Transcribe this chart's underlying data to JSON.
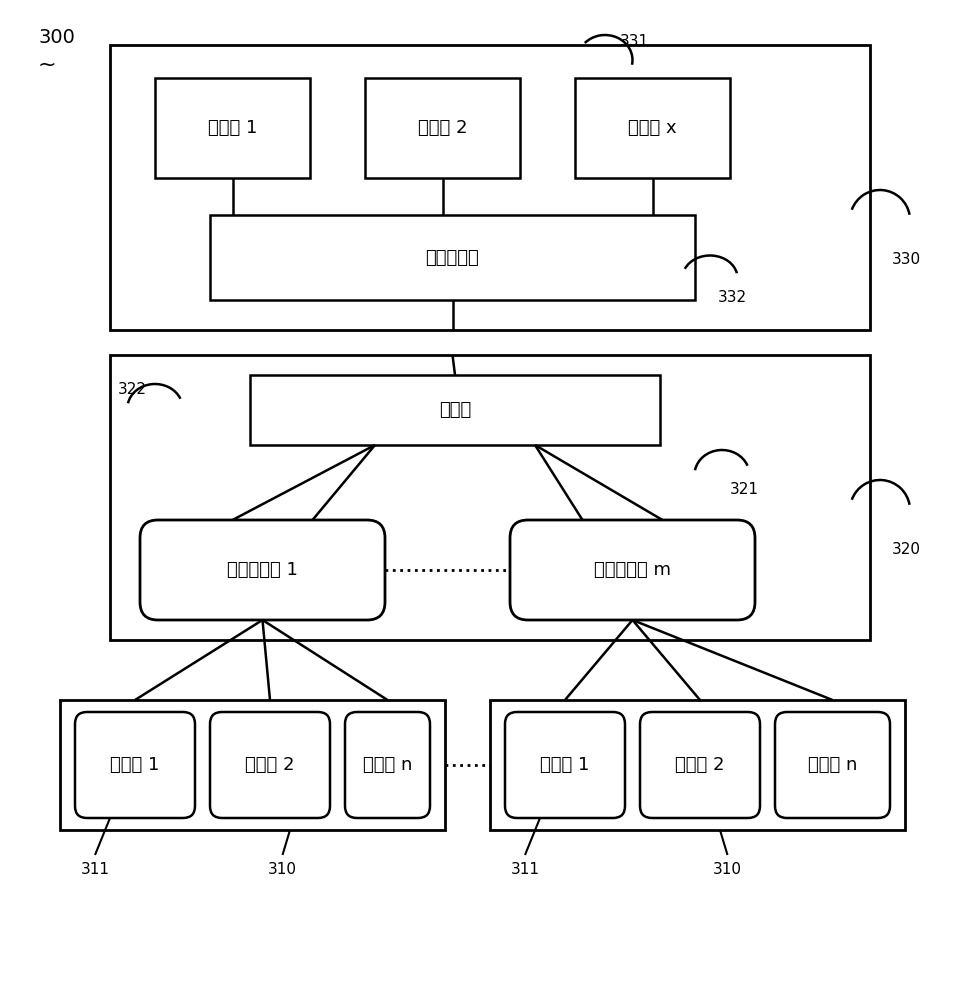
{
  "bg_color": "#ffffff",
  "label_300": "300",
  "label_tilde": "~",
  "label_330": "330",
  "label_331": "331",
  "label_332": "332",
  "label_320": "320",
  "label_321": "321",
  "label_322": "322",
  "label_310_1": "310",
  "label_311_1": "311",
  "label_310_2": "310",
  "label_311_2": "311",
  "client1": "客户端 1",
  "client2": "客户端 2",
  "clientx": "客户端 x",
  "server": "服务器终端",
  "internet": "互联网",
  "base1": "运营商基站 1",
  "basem": "运营商基站 m",
  "car1_label": "检测车 1",
  "car2_label": "检测车 2",
  "carn_label": "检测车 n",
  "font_size_main": 13,
  "font_size_label": 11,
  "line_color": "#000000",
  "fill_color": "#ffffff"
}
